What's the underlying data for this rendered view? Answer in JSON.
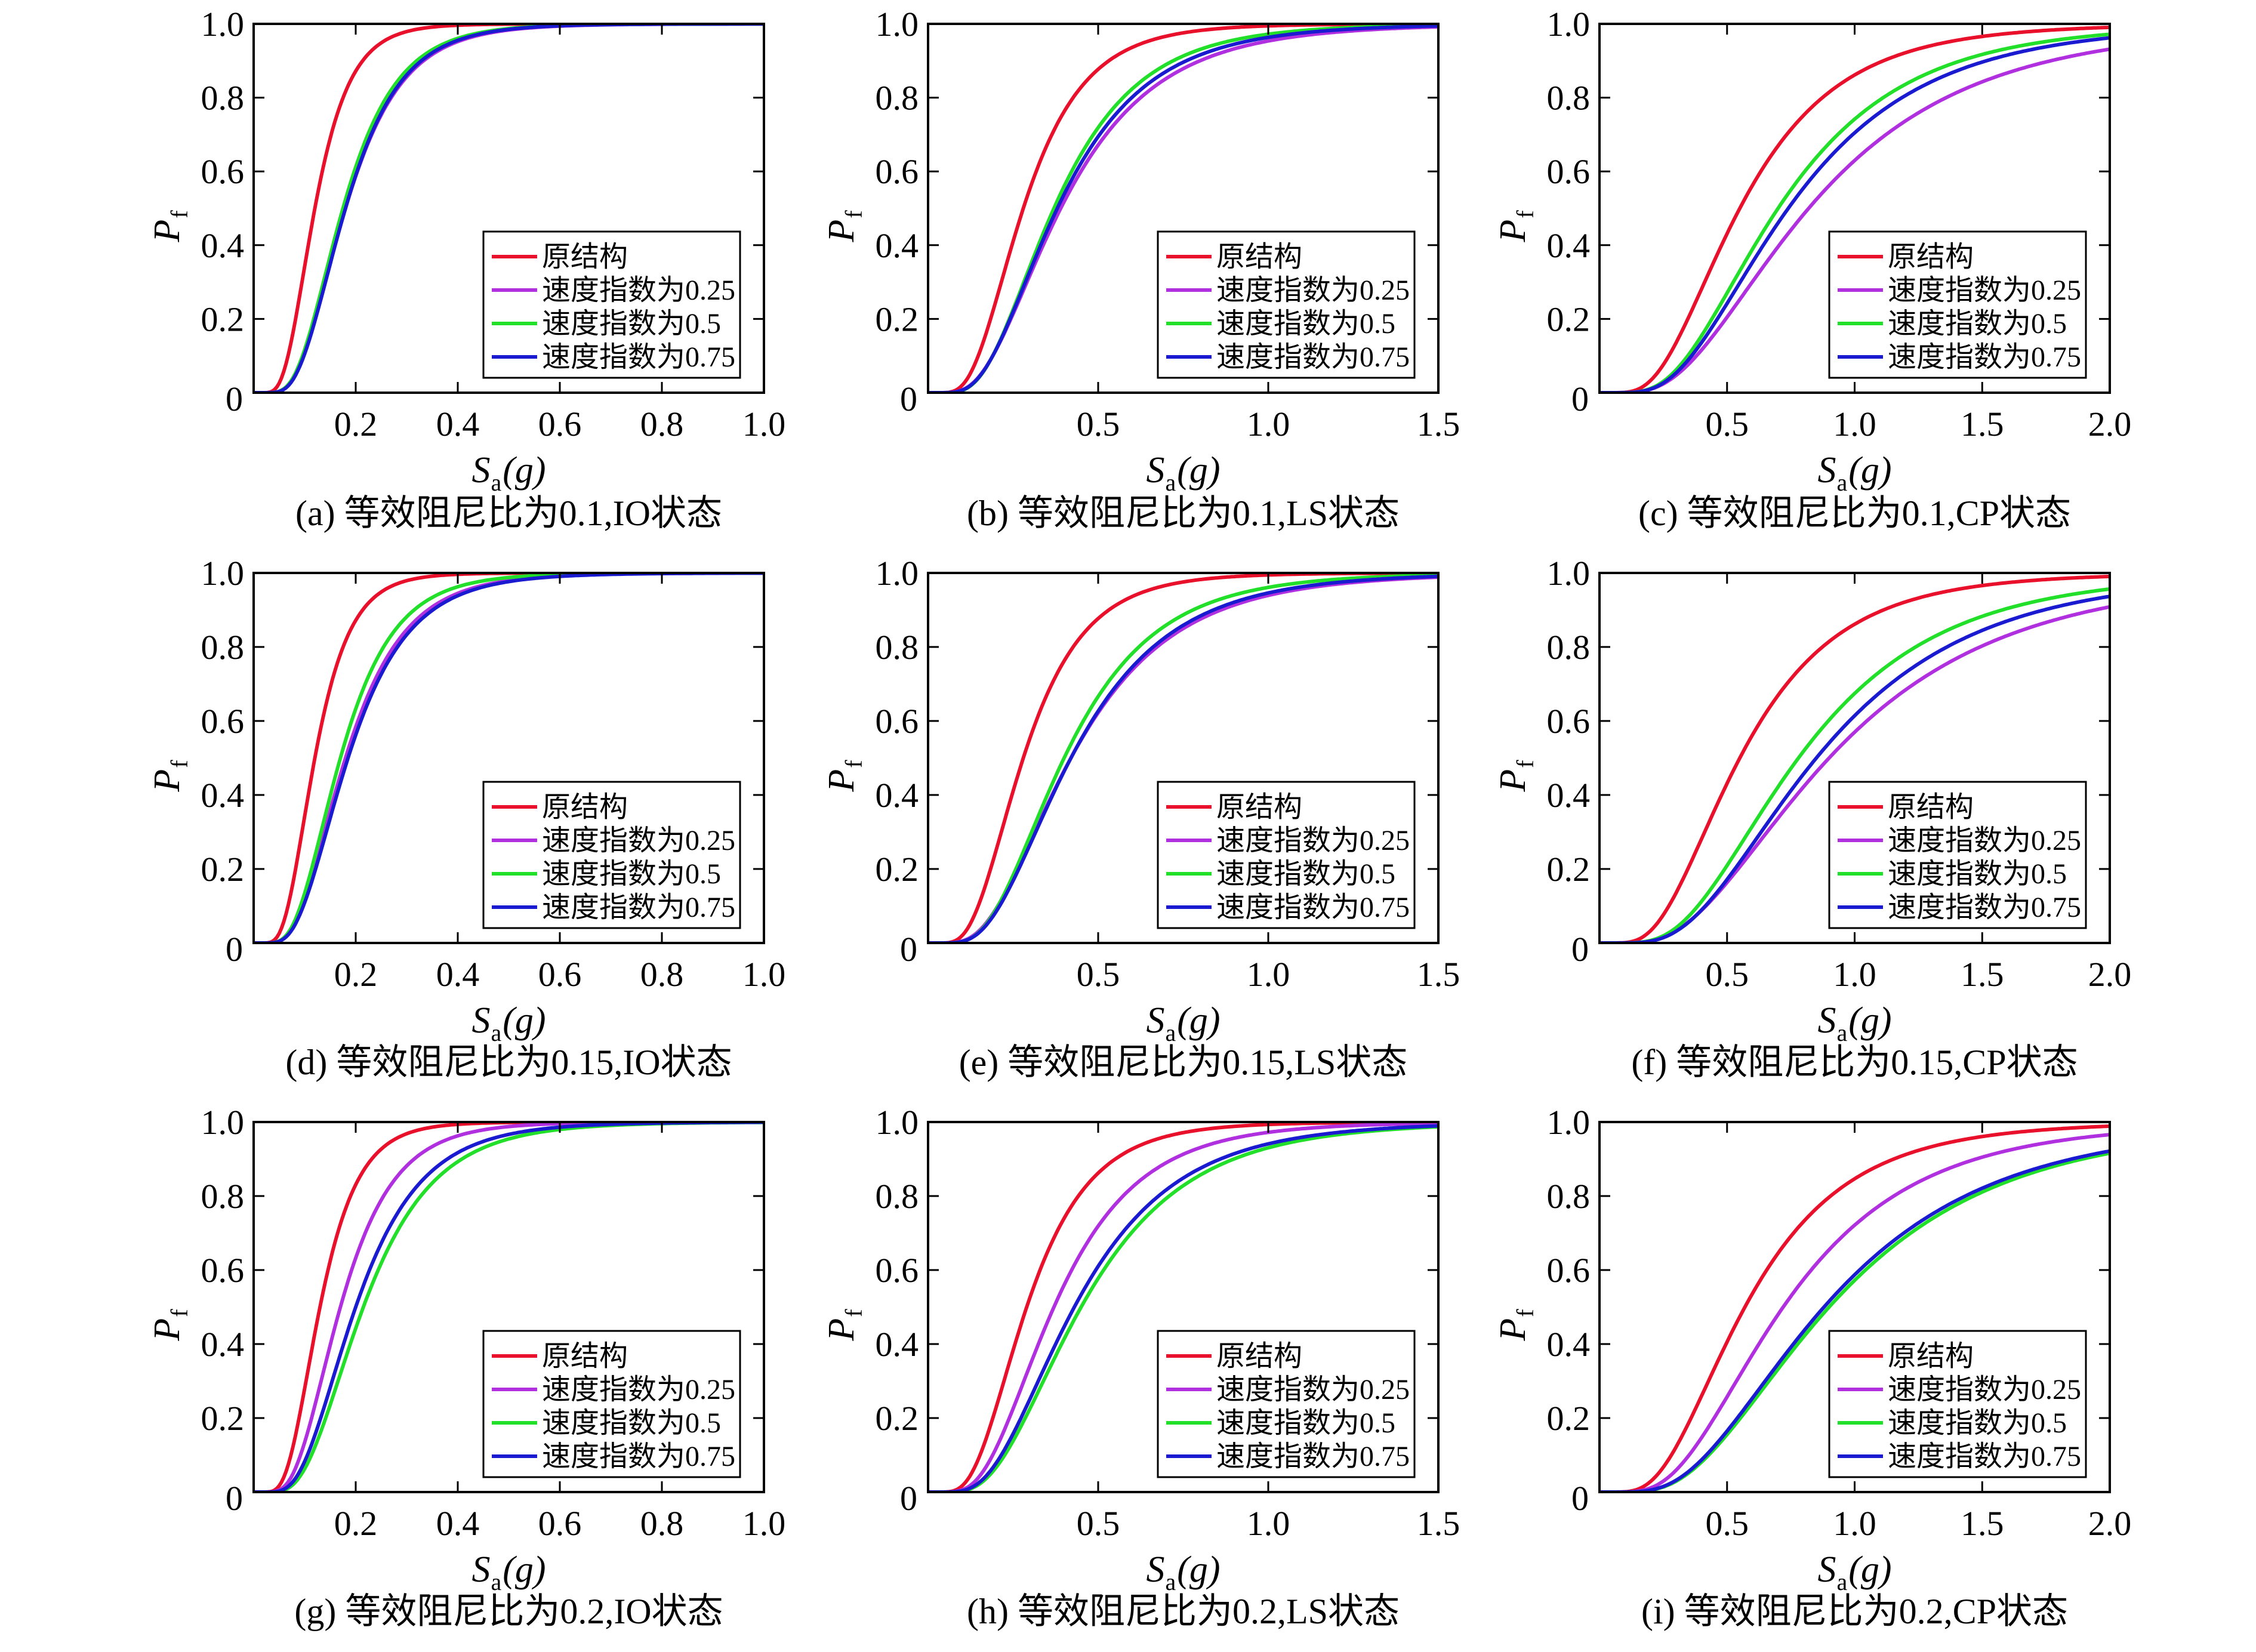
{
  "figure": {
    "ylabel_main": "P",
    "ylabel_sub": "f",
    "xlabel_main": "S",
    "xlabel_sub": "a",
    "xlabel_arg": "(g)"
  },
  "series_style": [
    {
      "name": "原结构",
      "color": "#e8102a"
    },
    {
      "name": "速度指数为0.25",
      "color": "#b030e0"
    },
    {
      "name": "速度指数为0.5",
      "color": "#22e02a"
    },
    {
      "name": "速度指数为0.75",
      "color": "#1a1ad0"
    }
  ],
  "chart_data": [
    {
      "type": "line",
      "title": "(a) 等效阻尼比为0.1,IO状态",
      "xlabel": "Sa(g)",
      "ylabel": "Pf",
      "xlim": [
        0,
        1.0
      ],
      "ylim": [
        0,
        1.0
      ],
      "xticks": [
        0.2,
        0.4,
        0.6,
        0.8,
        1.0
      ],
      "xtick_labels": [
        "0.2",
        "0.4",
        "0.6",
        "0.8",
        "1.0"
      ],
      "yticks": [
        0.2,
        0.4,
        0.6,
        0.8,
        1.0
      ],
      "ytick_labels": [
        "0.2",
        "0.4",
        "0.6",
        "0.8",
        "1.0"
      ],
      "origin_label": "0",
      "legend": "bottom-right",
      "series": [
        {
          "name": "原结构",
          "median": 0.12,
          "beta": 0.45
        },
        {
          "name": "速度指数为0.25",
          "median": 0.18,
          "beta": 0.48
        },
        {
          "name": "速度指数为0.5",
          "median": 0.175,
          "beta": 0.47
        },
        {
          "name": "速度指数为0.75",
          "median": 0.18,
          "beta": 0.47
        }
      ]
    },
    {
      "type": "line",
      "title": "(b) 等效阻尼比为0.1,LS状态",
      "xlabel": "Sa(g)",
      "ylabel": "Pf",
      "xlim": [
        0,
        1.5
      ],
      "ylim": [
        0,
        1.0
      ],
      "xticks": [
        0.5,
        1.0,
        1.5
      ],
      "xtick_labels": [
        "0.5",
        "1.0",
        "1.5"
      ],
      "yticks": [
        0.2,
        0.4,
        0.6,
        0.8,
        1.0
      ],
      "ytick_labels": [
        "0.2",
        "0.4",
        "0.6",
        "0.8",
        "1.0"
      ],
      "origin_label": "0",
      "legend": "bottom-right",
      "series": [
        {
          "name": "原结构",
          "median": 0.28,
          "beta": 0.5
        },
        {
          "name": "速度指数为0.25",
          "median": 0.39,
          "beta": 0.56
        },
        {
          "name": "速度指数为0.5",
          "median": 0.37,
          "beta": 0.52
        },
        {
          "name": "速度指数为0.75",
          "median": 0.38,
          "beta": 0.54
        }
      ]
    },
    {
      "type": "line",
      "title": "(c) 等效阻尼比为0.1,CP状态",
      "xlabel": "Sa(g)",
      "ylabel": "Pf",
      "xlim": [
        0,
        2.0
      ],
      "ylim": [
        0,
        1.0
      ],
      "xticks": [
        0.5,
        1.0,
        1.5,
        2.0
      ],
      "xtick_labels": [
        "0.5",
        "1.0",
        "1.5",
        "2.0"
      ],
      "yticks": [
        0.2,
        0.4,
        0.6,
        0.8,
        1.0
      ],
      "ytick_labels": [
        "0.2",
        "0.4",
        "0.6",
        "0.8",
        "1.0"
      ],
      "origin_label": "0",
      "legend": "bottom-right",
      "series": [
        {
          "name": "原结构",
          "median": 0.55,
          "beta": 0.55
        },
        {
          "name": "速度指数为0.25",
          "median": 0.82,
          "beta": 0.6
        },
        {
          "name": "速度指数为0.5",
          "median": 0.7,
          "beta": 0.55
        },
        {
          "name": "速度指数为0.75",
          "median": 0.74,
          "beta": 0.56
        }
      ]
    },
    {
      "type": "line",
      "title": "(d) 等效阻尼比为0.15,IO状态",
      "xlabel": "Sa(g)",
      "ylabel": "Pf",
      "xlim": [
        0,
        1.0
      ],
      "ylim": [
        0,
        1.0
      ],
      "xticks": [
        0.2,
        0.4,
        0.6,
        0.8,
        1.0
      ],
      "xtick_labels": [
        "0.2",
        "0.4",
        "0.6",
        "0.8",
        "1.0"
      ],
      "yticks": [
        0.2,
        0.4,
        0.6,
        0.8,
        1.0
      ],
      "ytick_labels": [
        "0.2",
        "0.4",
        "0.6",
        "0.8",
        "1.0"
      ],
      "origin_label": "0",
      "legend": "bottom-right",
      "series": [
        {
          "name": "原结构",
          "median": 0.12,
          "beta": 0.45
        },
        {
          "name": "速度指数为0.25",
          "median": 0.18,
          "beta": 0.5
        },
        {
          "name": "速度指数为0.5",
          "median": 0.17,
          "beta": 0.48
        },
        {
          "name": "速度指数为0.75",
          "median": 0.185,
          "beta": 0.5
        }
      ]
    },
    {
      "type": "line",
      "title": "(e) 等效阻尼比为0.15,LS状态",
      "xlabel": "Sa(g)",
      "ylabel": "Pf",
      "xlim": [
        0,
        1.5
      ],
      "ylim": [
        0,
        1.0
      ],
      "xticks": [
        0.5,
        1.0,
        1.5
      ],
      "xtick_labels": [
        "0.5",
        "1.0",
        "1.5"
      ],
      "yticks": [
        0.2,
        0.4,
        0.6,
        0.8,
        1.0
      ],
      "ytick_labels": [
        "0.2",
        "0.4",
        "0.6",
        "0.8",
        "1.0"
      ],
      "origin_label": "0",
      "legend": "bottom-right",
      "series": [
        {
          "name": "原结构",
          "median": 0.28,
          "beta": 0.5
        },
        {
          "name": "速度指数为0.25",
          "median": 0.42,
          "beta": 0.56
        },
        {
          "name": "速度指数为0.5",
          "median": 0.4,
          "beta": 0.52
        },
        {
          "name": "速度指数为0.75",
          "median": 0.42,
          "beta": 0.54
        }
      ]
    },
    {
      "type": "line",
      "title": "(f) 等效阻尼比为0.15,CP状态",
      "xlabel": "Sa(g)",
      "ylabel": "Pf",
      "xlim": [
        0,
        2.0
      ],
      "ylim": [
        0,
        1.0
      ],
      "xticks": [
        0.5,
        1.0,
        1.5,
        2.0
      ],
      "xtick_labels": [
        "0.5",
        "1.0",
        "1.5",
        "2.0"
      ],
      "yticks": [
        0.2,
        0.4,
        0.6,
        0.8,
        1.0
      ],
      "ytick_labels": [
        "0.2",
        "0.4",
        "0.6",
        "0.8",
        "1.0"
      ],
      "origin_label": "0",
      "legend": "bottom-right",
      "series": [
        {
          "name": "原结构",
          "median": 0.55,
          "beta": 0.55
        },
        {
          "name": "速度指数为0.25",
          "median": 0.9,
          "beta": 0.6
        },
        {
          "name": "速度指数为0.5",
          "median": 0.78,
          "beta": 0.55
        },
        {
          "name": "速度指数为0.75",
          "median": 0.85,
          "beta": 0.56
        }
      ]
    },
    {
      "type": "line",
      "title": "(g) 等效阻尼比为0.2,IO状态",
      "xlabel": "Sa(g)",
      "ylabel": "Pf",
      "xlim": [
        0,
        1.0
      ],
      "ylim": [
        0,
        1.0
      ],
      "xticks": [
        0.2,
        0.4,
        0.6,
        0.8,
        1.0
      ],
      "xtick_labels": [
        "0.2",
        "0.4",
        "0.6",
        "0.8",
        "1.0"
      ],
      "yticks": [
        0.2,
        0.4,
        0.6,
        0.8,
        1.0
      ],
      "ytick_labels": [
        "0.2",
        "0.4",
        "0.6",
        "0.8",
        "1.0"
      ],
      "origin_label": "0",
      "legend": "bottom-right",
      "series": [
        {
          "name": "原结构",
          "median": 0.13,
          "beta": 0.45
        },
        {
          "name": "速度指数为0.25",
          "median": 0.17,
          "beta": 0.48
        },
        {
          "name": "速度指数为0.5",
          "median": 0.215,
          "beta": 0.5
        },
        {
          "name": "速度指数为0.75",
          "median": 0.2,
          "beta": 0.5
        }
      ]
    },
    {
      "type": "line",
      "title": "(h) 等效阻尼比为0.2,LS状态",
      "xlabel": "Sa(g)",
      "ylabel": "Pf",
      "xlim": [
        0,
        1.5
      ],
      "ylim": [
        0,
        1.0
      ],
      "xticks": [
        0.5,
        1.0,
        1.5
      ],
      "xtick_labels": [
        "0.5",
        "1.0",
        "1.5"
      ],
      "yticks": [
        0.2,
        0.4,
        0.6,
        0.8,
        1.0
      ],
      "ytick_labels": [
        "0.2",
        "0.4",
        "0.6",
        "0.8",
        "1.0"
      ],
      "origin_label": "0",
      "legend": "bottom-right",
      "series": [
        {
          "name": "原结构",
          "median": 0.29,
          "beta": 0.5
        },
        {
          "name": "速度指数为0.25",
          "median": 0.37,
          "beta": 0.52
        },
        {
          "name": "速度指数为0.5",
          "median": 0.45,
          "beta": 0.54
        },
        {
          "name": "速度指数为0.75",
          "median": 0.43,
          "beta": 0.54
        }
      ]
    },
    {
      "type": "line",
      "title": "(i) 等效阻尼比为0.2,CP状态",
      "xlabel": "Sa(g)",
      "ylabel": "Pf",
      "xlim": [
        0,
        2.0
      ],
      "ylim": [
        0,
        1.0
      ],
      "xticks": [
        0.5,
        1.0,
        1.5,
        2.0
      ],
      "xtick_labels": [
        "0.5",
        "1.0",
        "1.5",
        "2.0"
      ],
      "yticks": [
        0.2,
        0.4,
        0.6,
        0.8,
        1.0
      ],
      "ytick_labels": [
        "0.2",
        "0.4",
        "0.6",
        "0.8",
        "1.0"
      ],
      "origin_label": "0",
      "legend": "bottom-right",
      "series": [
        {
          "name": "原结构",
          "median": 0.57,
          "beta": 0.55
        },
        {
          "name": "速度指数为0.25",
          "median": 0.72,
          "beta": 0.56
        },
        {
          "name": "速度指数为0.5",
          "median": 0.9,
          "beta": 0.58
        },
        {
          "name": "速度指数为0.75",
          "median": 0.88,
          "beta": 0.58
        }
      ]
    }
  ]
}
